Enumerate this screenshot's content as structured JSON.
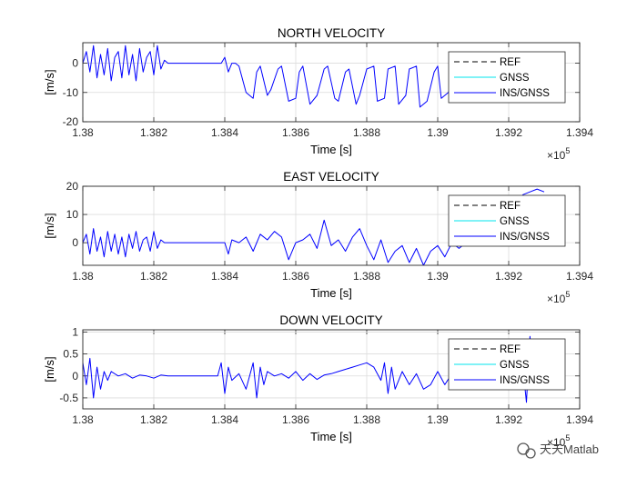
{
  "chart_data": [
    {
      "type": "line",
      "title": "NORTH VELOCITY",
      "xlabel": "Time [s]",
      "ylabel": "[m/s]",
      "x_multiplier": "×10",
      "x_exponent": "5",
      "xlim": [
        1.38,
        1.394
      ],
      "ylim": [
        -20,
        7
      ],
      "xticks": [
        "1.38",
        "1.382",
        "1.384",
        "1.386",
        "1.388",
        "1.39",
        "1.392",
        "1.394"
      ],
      "yticks": [
        0,
        -10,
        -20
      ],
      "yticklabels": [
        "0",
        "-10",
        "-20"
      ],
      "legend": [
        "REF",
        "GNSS",
        "INS/GNSS"
      ],
      "legend_position": "top-right",
      "grid": true,
      "series": [
        {
          "name": "INS/GNSS",
          "color": "#0000ff",
          "x": [
            1.38,
            1.3801,
            1.3802,
            1.3803,
            1.3804,
            1.3805,
            1.3806,
            1.3807,
            1.3808,
            1.3809,
            1.381,
            1.3811,
            1.3812,
            1.3813,
            1.3814,
            1.3815,
            1.3816,
            1.3817,
            1.3818,
            1.3819,
            1.382,
            1.3821,
            1.3822,
            1.3823,
            1.3824,
            1.3826,
            1.3828,
            1.383,
            1.3832,
            1.3834,
            1.3836,
            1.3838,
            1.3839,
            1.384,
            1.3841,
            1.3842,
            1.3843,
            1.3844,
            1.3846,
            1.3848,
            1.3849,
            1.385,
            1.3852,
            1.3853,
            1.3855,
            1.3856,
            1.3858,
            1.386,
            1.3861,
            1.3862,
            1.3864,
            1.3866,
            1.3868,
            1.3869,
            1.3871,
            1.3872,
            1.3874,
            1.3875,
            1.3877,
            1.3878,
            1.388,
            1.3882,
            1.3883,
            1.3885,
            1.3886,
            1.3888,
            1.3889,
            1.3891,
            1.3892,
            1.3894,
            1.3895,
            1.3897,
            1.3899,
            1.39,
            1.3901,
            1.3903,
            1.3905,
            1.3907,
            1.3908,
            1.391
          ],
          "y": [
            0,
            4,
            -3,
            6,
            -5,
            3,
            -4,
            5,
            -6,
            2,
            4,
            -5,
            6,
            -4,
            3,
            -6,
            5,
            -3,
            2,
            4,
            -4,
            6,
            -2,
            1,
            0,
            0,
            0,
            0,
            0,
            0,
            0,
            0,
            0,
            2,
            -3,
            0,
            0,
            -1,
            -10,
            -12,
            -3,
            -1,
            -11,
            -9,
            -2,
            -1,
            -13,
            -12,
            -3,
            -1,
            -14,
            -11,
            -2,
            -1,
            -12,
            -13,
            -3,
            -2,
            -14,
            -11,
            -2,
            -1,
            -13,
            -12,
            -2,
            -1,
            -14,
            -11,
            -2,
            -1,
            -15,
            -13,
            -3,
            -1,
            -12,
            -10,
            -2,
            -1,
            0,
            0
          ]
        }
      ]
    },
    {
      "type": "line",
      "title": "EAST VELOCITY",
      "xlabel": "Time [s]",
      "ylabel": "[m/s]",
      "x_multiplier": "×10",
      "x_exponent": "5",
      "xlim": [
        1.38,
        1.394
      ],
      "ylim": [
        -8,
        20
      ],
      "xticks": [
        "1.38",
        "1.382",
        "1.384",
        "1.386",
        "1.388",
        "1.39",
        "1.392",
        "1.394"
      ],
      "yticks": [
        20,
        10,
        0
      ],
      "yticklabels": [
        "20",
        "10",
        "0"
      ],
      "legend": [
        "REF",
        "GNSS",
        "INS/GNSS"
      ],
      "legend_position": "top-right",
      "grid": true,
      "series": [
        {
          "name": "INS/GNSS",
          "color": "#0000ff",
          "x": [
            1.38,
            1.3801,
            1.3802,
            1.3803,
            1.3804,
            1.3805,
            1.3806,
            1.3807,
            1.3808,
            1.3809,
            1.381,
            1.3811,
            1.3812,
            1.3813,
            1.3814,
            1.3815,
            1.3816,
            1.3817,
            1.3818,
            1.3819,
            1.382,
            1.3821,
            1.3822,
            1.3823,
            1.3826,
            1.383,
            1.3834,
            1.3838,
            1.384,
            1.3841,
            1.3842,
            1.3844,
            1.3846,
            1.3848,
            1.385,
            1.3852,
            1.3854,
            1.3856,
            1.3858,
            1.386,
            1.3862,
            1.3864,
            1.3866,
            1.3868,
            1.387,
            1.3872,
            1.3874,
            1.3876,
            1.3878,
            1.388,
            1.3882,
            1.3884,
            1.3886,
            1.3888,
            1.389,
            1.3892,
            1.3894,
            1.3896,
            1.3898,
            1.39,
            1.3902,
            1.3904,
            1.3906,
            1.3908,
            1.391,
            1.3914,
            1.3918,
            1.3922,
            1.3924,
            1.3926,
            1.3928,
            1.393
          ],
          "y": [
            0,
            3,
            -4,
            5,
            -3,
            2,
            -5,
            4,
            -3,
            3,
            -4,
            2,
            -5,
            3,
            -2,
            4,
            -3,
            1,
            2,
            -3,
            4,
            -2,
            1,
            0,
            0,
            0,
            0,
            0,
            0,
            -4,
            1,
            0,
            2,
            -3,
            3,
            1,
            4,
            2,
            -6,
            0,
            1,
            3,
            -2,
            8,
            -1,
            1,
            -3,
            2,
            5,
            -1,
            -6,
            1,
            -7,
            -3,
            -1,
            -7,
            -2,
            -8,
            -3,
            -1,
            -5,
            0,
            -2,
            0,
            0,
            -1,
            1,
            0,
            17,
            18,
            19,
            18
          ]
        }
      ]
    },
    {
      "type": "line",
      "title": "DOWN VELOCITY",
      "xlabel": "Time [s]",
      "ylabel": "[m/s]",
      "x_multiplier": "×10",
      "x_exponent": "5",
      "xlim": [
        1.38,
        1.394
      ],
      "ylim": [
        -0.75,
        1.05
      ],
      "xticks": [
        "1.38",
        "1.382",
        "1.384",
        "1.386",
        "1.388",
        "1.39",
        "1.392",
        "1.394"
      ],
      "yticks": [
        1,
        0.5,
        0,
        -0.5
      ],
      "yticklabels": [
        "1",
        "0.5",
        "0",
        "-0.5"
      ],
      "legend": [
        "REF",
        "GNSS",
        "INS/GNSS"
      ],
      "legend_position": "top-right",
      "grid": true,
      "series": [
        {
          "name": "INS/GNSS",
          "color": "#0000ff",
          "x": [
            1.38,
            1.3801,
            1.3802,
            1.3803,
            1.3804,
            1.3805,
            1.3806,
            1.3807,
            1.3808,
            1.381,
            1.3812,
            1.3814,
            1.3816,
            1.3818,
            1.382,
            1.3822,
            1.3824,
            1.3828,
            1.3832,
            1.3836,
            1.3838,
            1.3839,
            1.384,
            1.3841,
            1.3842,
            1.3844,
            1.3846,
            1.3848,
            1.3849,
            1.385,
            1.3851,
            1.3852,
            1.3854,
            1.3856,
            1.3858,
            1.386,
            1.3862,
            1.3864,
            1.3866,
            1.3868,
            1.387,
            1.3872,
            1.3874,
            1.3876,
            1.3878,
            1.388,
            1.3882,
            1.3884,
            1.3885,
            1.3886,
            1.3887,
            1.3888,
            1.389,
            1.3892,
            1.3894,
            1.3896,
            1.3898,
            1.39,
            1.3902,
            1.3904,
            1.3906,
            1.3908,
            1.391,
            1.3914,
            1.3918,
            1.3922,
            1.3924,
            1.3925,
            1.3926,
            1.3927,
            1.3928,
            1.393
          ],
          "y": [
            0.3,
            -0.2,
            0.4,
            -0.5,
            0.2,
            -0.3,
            0.1,
            -0.1,
            0.1,
            0,
            0.05,
            -0.05,
            0.02,
            0,
            -0.05,
            0.02,
            0,
            0,
            0,
            0,
            0,
            0.3,
            -0.4,
            0.2,
            -0.1,
            0.05,
            -0.3,
            0.3,
            -0.5,
            0.2,
            -0.2,
            0.1,
            0,
            0.05,
            -0.05,
            0.1,
            -0.1,
            0.05,
            -0.08,
            0.02,
            0.05,
            0.1,
            0.15,
            0.2,
            0.25,
            0.3,
            0.2,
            -0.1,
            0.3,
            -0.4,
            0.2,
            -0.3,
            0.1,
            -0.2,
            0.05,
            -0.3,
            -0.2,
            0.1,
            -0.2,
            0.05,
            -0.1,
            0,
            0,
            0,
            0,
            0,
            0.2,
            -0.6,
            0.9,
            -0.3,
            0.1,
            0
          ]
        }
      ]
    }
  ],
  "watermark": "天天Matlab"
}
